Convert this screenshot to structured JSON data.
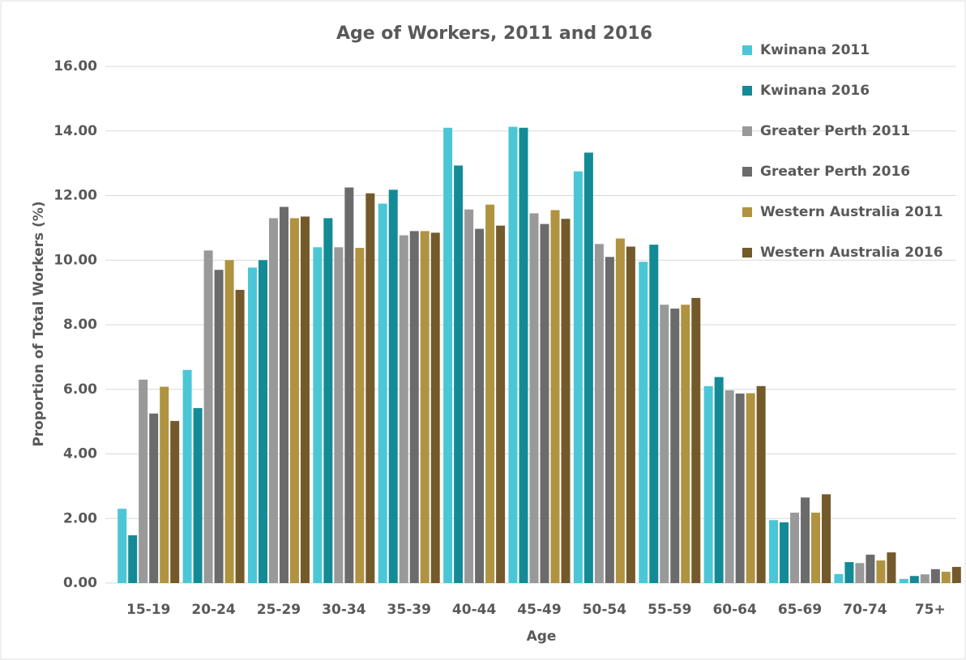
{
  "chart_data": {
    "type": "bar",
    "title": "Age of Workers, 2011 and 2016",
    "x_label": "Age",
    "y_label": "Proportion of Total Workers (%)",
    "categories": [
      "15-19",
      "20-24",
      "25-29",
      "30-34",
      "35-39",
      "40-44",
      "45-49",
      "50-54",
      "55-59",
      "60-64",
      "65-69",
      "70-74",
      "75+"
    ],
    "series": [
      {
        "name": "Kwinana 2011",
        "color": "#4bc6d6",
        "values": [
          2.3,
          6.6,
          9.77,
          10.4,
          11.75,
          14.1,
          14.13,
          12.75,
          9.95,
          6.1,
          1.95,
          0.28,
          0.13
        ]
      },
      {
        "name": "Kwinana 2016",
        "color": "#138b96",
        "values": [
          1.48,
          5.42,
          10.0,
          11.3,
          12.18,
          12.93,
          14.1,
          13.33,
          10.48,
          6.38,
          1.88,
          0.65,
          0.22
        ]
      },
      {
        "name": "Greater Perth 2011",
        "color": "#999999",
        "values": [
          6.3,
          10.3,
          11.3,
          10.4,
          10.77,
          11.57,
          11.45,
          10.5,
          8.62,
          5.97,
          2.18,
          0.62,
          0.27
        ]
      },
      {
        "name": "Greater Perth 2016",
        "color": "#6b6b6b",
        "values": [
          5.25,
          9.7,
          11.65,
          12.25,
          10.9,
          10.97,
          11.12,
          10.1,
          8.5,
          5.87,
          2.65,
          0.88,
          0.43
        ]
      },
      {
        "name": "Western Australia 2011",
        "color": "#b09340",
        "values": [
          6.08,
          10.0,
          11.3,
          10.38,
          10.9,
          11.72,
          11.55,
          10.67,
          8.62,
          5.88,
          2.18,
          0.7,
          0.35
        ]
      },
      {
        "name": "Western Australia 2016",
        "color": "#74592a",
        "values": [
          5.02,
          9.08,
          11.35,
          12.07,
          10.85,
          11.07,
          11.28,
          10.42,
          8.83,
          6.1,
          2.75,
          0.95,
          0.5
        ]
      }
    ],
    "ylim": [
      0,
      16
    ],
    "yticks": [
      {
        "value": 0,
        "label": "0.00"
      },
      {
        "value": 2,
        "label": "2.00"
      },
      {
        "value": 4,
        "label": "4.00"
      },
      {
        "value": 6,
        "label": "6.00"
      },
      {
        "value": 8,
        "label": "8.00"
      },
      {
        "value": 10,
        "label": "10.00"
      },
      {
        "value": 12,
        "label": "12.00"
      },
      {
        "value": 14,
        "label": "14.00"
      },
      {
        "value": 16,
        "label": "16.00"
      }
    ],
    "grid": true
  }
}
